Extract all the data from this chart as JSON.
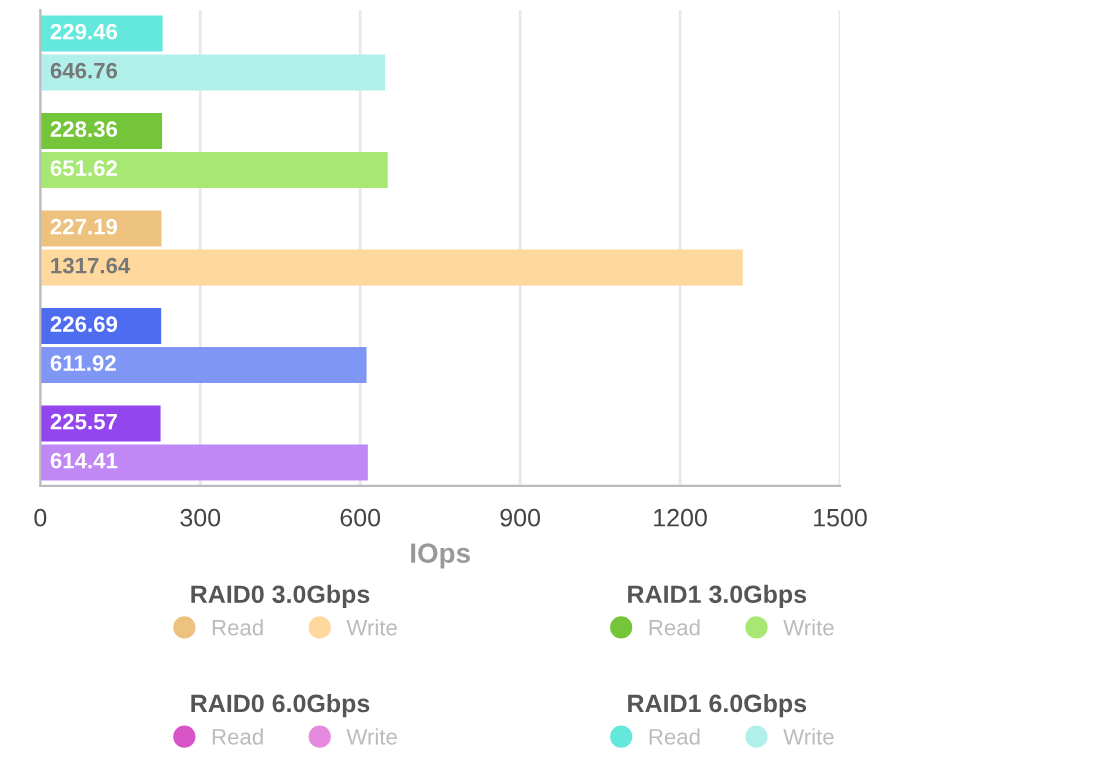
{
  "chart_data": {
    "type": "bar",
    "orientation": "horizontal",
    "xlabel": "IOps",
    "categories": [
      null,
      null,
      null,
      null,
      null,
      null,
      null,
      null,
      null,
      null
    ],
    "series": [
      {
        "name": "Read",
        "color": "#edc17e",
        "values": [
          null,
          null,
          null,
          null,
          227.19,
          null,
          null,
          null,
          null,
          null
        ]
      },
      {
        "name": "Write",
        "color": "#fed89c",
        "values": [
          null,
          null,
          null,
          null,
          null,
          1317.64,
          null,
          null,
          null,
          null
        ]
      },
      {
        "name": "Read",
        "color": "#74c53a",
        "values": [
          null,
          null,
          228.36,
          null,
          null,
          null,
          null,
          null,
          null,
          null
        ]
      },
      {
        "name": "Write",
        "color": "#a7e874",
        "values": [
          null,
          null,
          null,
          651.62,
          null,
          null,
          null,
          null,
          null,
          null
        ]
      },
      {
        "name": "Read",
        "color": "#d955c7",
        "values": [
          null,
          null,
          null,
          null,
          null,
          null,
          null,
          null,
          null,
          null
        ]
      },
      {
        "name": "Write",
        "color": "#e58ade",
        "values": [
          null,
          null,
          null,
          null,
          null,
          null,
          null,
          null,
          null,
          null
        ]
      },
      {
        "name": "Read",
        "color": "#65e8dc",
        "values": [
          229.46,
          null,
          null,
          null,
          null,
          null,
          null,
          null,
          null,
          null
        ]
      },
      {
        "name": "Write",
        "color": "#b1f0ea",
        "values": [
          null,
          646.76,
          null,
          null,
          null,
          null,
          null,
          null,
          null,
          null
        ]
      },
      {
        "color": "#4d6cf0",
        "values": [
          null,
          null,
          null,
          null,
          null,
          null,
          226.69,
          null,
          null,
          null
        ]
      },
      {
        "color": "#8096f5",
        "values": [
          null,
          null,
          null,
          null,
          null,
          null,
          null,
          611.92,
          null,
          null
        ]
      },
      {
        "color": "#9446ee",
        "values": [
          null,
          null,
          null,
          null,
          null,
          null,
          null,
          null,
          225.57,
          null
        ]
      },
      {
        "color": "#c088f5",
        "values": [
          null,
          null,
          null,
          null,
          null,
          null,
          null,
          null,
          null,
          614.41
        ]
      }
    ],
    "annotations": [
      "RAID0 3.0Gbps",
      "RAID1 3.0Gbps",
      "RAID0 6.0Gbps",
      "RAID1 6.0Gbps"
    ],
    "xlim": [
      0,
      1500
    ],
    "xticks": [
      0,
      300,
      600,
      900,
      1200,
      1500
    ],
    "grid": "x",
    "data_labels": true,
    "tick_labels": "x",
    "legend": "bottom"
  }
}
